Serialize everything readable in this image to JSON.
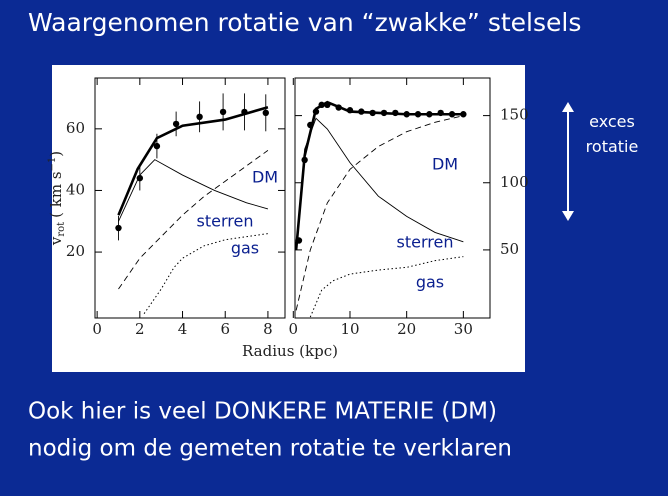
{
  "slide": {
    "title": "Waargenomen rotatie van “zwakke” stelsels",
    "annotation": [
      "exces",
      "rotatie"
    ],
    "footer": [
      "Ook hier is veel DONKERE MATERIE (DM)",
      "nodig om de gemeten rotatie te verklaren"
    ]
  },
  "chart_data": [
    {
      "type": "line",
      "ylabel": {
        "symbol": "v",
        "subscript": "rot",
        "unit": "( km s",
        "exponent": "−1",
        "close": ")"
      },
      "xlim": [
        -0.1,
        8.8
      ],
      "ylim": [
        -1.4,
        76.5
      ],
      "xticks": [
        0,
        2,
        4,
        6,
        8
      ],
      "yticks": [
        20,
        40,
        60
      ],
      "y_axis_side": "left",
      "series": [
        {
          "style": "points",
          "color": "#000000",
          "x": [
            1,
            2,
            2.8,
            3.7,
            4.8,
            5.9,
            6.9,
            7.9
          ],
          "values": [
            27.8,
            44,
            54.4,
            61.6,
            63.9,
            65.5,
            65.5,
            65.2
          ],
          "errors": [
            4,
            4,
            4,
            4,
            5,
            6,
            6,
            6
          ]
        },
        {
          "style": "thick",
          "color": "#000000",
          "x": [
            1,
            1.9,
            2.8,
            4,
            6,
            8
          ],
          "values": [
            32,
            47,
            57,
            61,
            63,
            67
          ]
        },
        {
          "name": "sterren",
          "style": "solid",
          "color": "#000000",
          "x": [
            1,
            2,
            2.7,
            4,
            5.5,
            7,
            8
          ],
          "values": [
            30,
            45,
            50,
            45,
            40,
            36,
            34
          ]
        },
        {
          "name": "DM",
          "style": "dashed",
          "color": "#000000",
          "x": [
            1,
            2,
            3,
            4,
            5,
            6,
            7,
            8
          ],
          "values": [
            8,
            18,
            25,
            32,
            38,
            43,
            48,
            53
          ]
        },
        {
          "name": "gas",
          "style": "dotted",
          "color": "#000000",
          "x": [
            2.2,
            3,
            3.6,
            4,
            5,
            6,
            7,
            8
          ],
          "values": [
            0,
            8,
            15,
            18,
            22,
            24,
            25,
            26
          ]
        }
      ]
    },
    {
      "type": "line",
      "xlabel": "Radius (kpc)",
      "xlim": [
        0.3,
        34.7
      ],
      "ylim": [
        -0.7,
        178
      ],
      "xticks": [
        0,
        10,
        20,
        30
      ],
      "yticks": [
        50,
        100,
        150
      ],
      "y_axis_side": "right",
      "series": [
        {
          "style": "points",
          "color": "#000000",
          "x": [
            1,
            2,
            3,
            4,
            5,
            6,
            8,
            10,
            12,
            14,
            16,
            18,
            20,
            22,
            24,
            26,
            28,
            30
          ],
          "values": [
            57,
            117,
            143,
            153,
            158,
            158,
            156,
            154,
            153,
            152,
            152,
            152,
            151,
            151,
            151,
            152,
            151,
            151
          ]
        },
        {
          "style": "thick",
          "color": "#000000",
          "x": [
            0.5,
            2,
            4,
            6,
            10,
            20,
            30
          ],
          "values": [
            50,
            120,
            155,
            160,
            153,
            151,
            151
          ]
        },
        {
          "name": "sterren",
          "style": "solid",
          "color": "#000000",
          "x": [
            0.5,
            2,
            4,
            6,
            10,
            15,
            20,
            25,
            30
          ],
          "values": [
            50,
            125,
            148,
            140,
            115,
            90,
            75,
            63,
            56
          ]
        },
        {
          "name": "DM",
          "style": "dashed",
          "color": "#000000",
          "x": [
            0.5,
            3,
            6,
            10,
            15,
            20,
            25,
            30
          ],
          "values": [
            5,
            50,
            85,
            110,
            127,
            138,
            145,
            150
          ]
        },
        {
          "name": "gas",
          "style": "dotted",
          "color": "#000000",
          "x": [
            3,
            5,
            7,
            10,
            15,
            20,
            25,
            30
          ],
          "values": [
            0,
            20,
            27,
            32,
            35,
            37,
            42,
            45
          ]
        }
      ]
    }
  ]
}
